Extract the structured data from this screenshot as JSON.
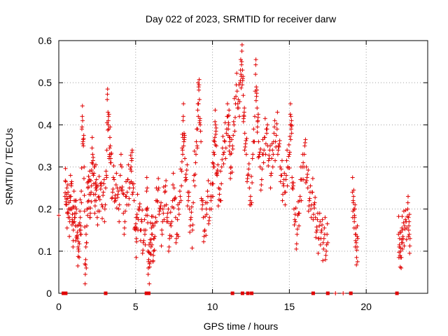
{
  "chart_data": {
    "type": "scatter",
    "title": "Day 022 of 2023, SRMTID for receiver darw",
    "xlabel": "GPS time / hours",
    "ylabel": "SRMTID / TECUs",
    "xlim": [
      0,
      24
    ],
    "ylim": [
      0,
      0.6
    ],
    "xticks": [
      "0",
      "5",
      "10",
      "15",
      "20"
    ],
    "yticks": [
      "0",
      "0.1",
      "0.2",
      "0.3",
      "0.4",
      "0.5",
      "0.6"
    ],
    "xtick_values": [
      0,
      5,
      10,
      15,
      20
    ],
    "ytick_values": [
      0,
      0.1,
      0.2,
      0.3,
      0.4,
      0.5,
      0.6
    ],
    "grid": true,
    "marker": "+",
    "color": "#e00000",
    "series": [
      {
        "name": "SRMTID",
        "points": [
          [
            0.0,
            0.185
          ],
          [
            0.4,
            0.23
          ],
          [
            0.45,
            0.265
          ],
          [
            0.5,
            0.21
          ],
          [
            0.55,
            0.19
          ],
          [
            0.6,
            0.24
          ],
          [
            0.65,
            0.2
          ],
          [
            0.7,
            0.18
          ],
          [
            0.75,
            0.22
          ],
          [
            0.8,
            0.26
          ],
          [
            0.85,
            0.2
          ],
          [
            0.9,
            0.17
          ],
          [
            0.95,
            0.15
          ],
          [
            1.0,
            0.22
          ],
          [
            1.05,
            0.18
          ],
          [
            1.1,
            0.16
          ],
          [
            1.15,
            0.2
          ],
          [
            1.2,
            0.13
          ],
          [
            1.25,
            0.11
          ],
          [
            1.3,
            0.1
          ],
          [
            1.35,
            0.15
          ],
          [
            1.4,
            0.18
          ],
          [
            1.45,
            0.14
          ],
          [
            1.5,
            0.39
          ],
          [
            1.55,
            0.41
          ],
          [
            1.6,
            0.35
          ],
          [
            1.65,
            0.3
          ],
          [
            1.7,
            0.07
          ],
          [
            1.75,
            0.08
          ],
          [
            1.8,
            0.12
          ],
          [
            1.85,
            0.2
          ],
          [
            1.9,
            0.25
          ],
          [
            1.95,
            0.22
          ],
          [
            2.0,
            0.27
          ],
          [
            2.05,
            0.19
          ],
          [
            2.1,
            0.24
          ],
          [
            2.15,
            0.31
          ],
          [
            2.2,
            0.33
          ],
          [
            2.25,
            0.28
          ],
          [
            2.3,
            0.3
          ],
          [
            2.35,
            0.22
          ],
          [
            2.4,
            0.25
          ],
          [
            2.45,
            0.27
          ],
          [
            2.5,
            0.18
          ],
          [
            2.6,
            0.23
          ],
          [
            2.7,
            0.26
          ],
          [
            2.8,
            0.21
          ],
          [
            2.9,
            0.24
          ],
          [
            3.0,
            0.2
          ],
          [
            3.1,
            0.28
          ],
          [
            3.15,
            0.46
          ],
          [
            3.2,
            0.43
          ],
          [
            3.25,
            0.39
          ],
          [
            3.3,
            0.33
          ],
          [
            3.35,
            0.35
          ],
          [
            3.4,
            0.31
          ],
          [
            3.5,
            0.24
          ],
          [
            3.6,
            0.27
          ],
          [
            3.7,
            0.22
          ],
          [
            3.8,
            0.25
          ],
          [
            3.9,
            0.2
          ],
          [
            4.0,
            0.28
          ],
          [
            4.1,
            0.3
          ],
          [
            4.2,
            0.19
          ],
          [
            4.3,
            0.17
          ],
          [
            4.4,
            0.23
          ],
          [
            4.5,
            0.27
          ],
          [
            4.6,
            0.25
          ],
          [
            4.7,
            0.3
          ],
          [
            4.75,
            0.32
          ],
          [
            4.8,
            0.26
          ],
          [
            4.9,
            0.22
          ],
          [
            5.0,
            0.15
          ],
          [
            5.05,
            0.13
          ],
          [
            5.1,
            0.18
          ],
          [
            5.2,
            0.2
          ],
          [
            5.3,
            0.15
          ],
          [
            5.4,
            0.17
          ],
          [
            5.5,
            0.12
          ],
          [
            5.6,
            0.14
          ],
          [
            5.7,
            0.2
          ],
          [
            5.75,
            0.25
          ],
          [
            5.8,
            0.1
          ],
          [
            5.85,
            0.08
          ],
          [
            5.9,
            0.07
          ],
          [
            5.95,
            0.12
          ],
          [
            6.0,
            0.11
          ],
          [
            6.05,
            0.14
          ],
          [
            6.1,
            0.16
          ],
          [
            6.15,
            0.09
          ],
          [
            6.2,
            0.13
          ],
          [
            6.3,
            0.18
          ],
          [
            6.4,
            0.22
          ],
          [
            6.5,
            0.25
          ],
          [
            6.6,
            0.2
          ],
          [
            6.7,
            0.15
          ],
          [
            6.8,
            0.19
          ],
          [
            6.9,
            0.24
          ],
          [
            7.0,
            0.21
          ],
          [
            7.1,
            0.17
          ],
          [
            7.2,
            0.13
          ],
          [
            7.3,
            0.16
          ],
          [
            7.4,
            0.22
          ],
          [
            7.5,
            0.25
          ],
          [
            7.6,
            0.18
          ],
          [
            7.7,
            0.14
          ],
          [
            7.8,
            0.2
          ],
          [
            7.9,
            0.23
          ],
          [
            8.0,
            0.29
          ],
          [
            8.05,
            0.34
          ],
          [
            8.1,
            0.42
          ],
          [
            8.15,
            0.38
          ],
          [
            8.2,
            0.32
          ],
          [
            8.3,
            0.27
          ],
          [
            8.4,
            0.24
          ],
          [
            8.5,
            0.2
          ],
          [
            8.6,
            0.18
          ],
          [
            8.7,
            0.15
          ],
          [
            8.8,
            0.28
          ],
          [
            8.9,
            0.31
          ],
          [
            9.0,
            0.35
          ],
          [
            9.05,
            0.45
          ],
          [
            9.1,
            0.49
          ],
          [
            9.15,
            0.46
          ],
          [
            9.2,
            0.4
          ],
          [
            9.3,
            0.22
          ],
          [
            9.4,
            0.18
          ],
          [
            9.5,
            0.15
          ],
          [
            9.6,
            0.2
          ],
          [
            9.7,
            0.23
          ],
          [
            9.8,
            0.18
          ],
          [
            9.9,
            0.22
          ],
          [
            10.0,
            0.26
          ],
          [
            10.05,
            0.3
          ],
          [
            10.1,
            0.33
          ],
          [
            10.15,
            0.37
          ],
          [
            10.2,
            0.4
          ],
          [
            10.25,
            0.35
          ],
          [
            10.3,
            0.28
          ],
          [
            10.4,
            0.25
          ],
          [
            10.5,
            0.22
          ],
          [
            10.6,
            0.3
          ],
          [
            10.7,
            0.33
          ],
          [
            10.8,
            0.36
          ],
          [
            10.9,
            0.38
          ],
          [
            11.0,
            0.42
          ],
          [
            11.05,
            0.4
          ],
          [
            11.1,
            0.37
          ],
          [
            11.15,
            0.33
          ],
          [
            11.2,
            0.3
          ],
          [
            11.3,
            0.35
          ],
          [
            11.4,
            0.4
          ],
          [
            11.5,
            0.45
          ],
          [
            11.6,
            0.48
          ],
          [
            11.7,
            0.44
          ],
          [
            11.8,
            0.5
          ],
          [
            11.85,
            0.52
          ],
          [
            11.9,
            0.55
          ],
          [
            11.95,
            0.53
          ],
          [
            12.0,
            0.47
          ],
          [
            12.05,
            0.42
          ],
          [
            12.1,
            0.38
          ],
          [
            12.2,
            0.33
          ],
          [
            12.3,
            0.28
          ],
          [
            12.4,
            0.25
          ],
          [
            12.5,
            0.21
          ],
          [
            12.6,
            0.32
          ],
          [
            12.7,
            0.36
          ],
          [
            12.8,
            0.52
          ],
          [
            12.85,
            0.49
          ],
          [
            12.9,
            0.44
          ],
          [
            12.95,
            0.41
          ],
          [
            13.0,
            0.36
          ],
          [
            13.1,
            0.3
          ],
          [
            13.2,
            0.27
          ],
          [
            13.3,
            0.33
          ],
          [
            13.4,
            0.37
          ],
          [
            13.5,
            0.39
          ],
          [
            13.6,
            0.35
          ],
          [
            13.7,
            0.32
          ],
          [
            13.8,
            0.28
          ],
          [
            13.9,
            0.34
          ],
          [
            14.0,
            0.38
          ],
          [
            14.1,
            0.36
          ],
          [
            14.2,
            0.39
          ],
          [
            14.3,
            0.35
          ],
          [
            14.4,
            0.3
          ],
          [
            14.5,
            0.28
          ],
          [
            14.6,
            0.26
          ],
          [
            14.7,
            0.24
          ],
          [
            14.8,
            0.28
          ],
          [
            14.9,
            0.3
          ],
          [
            15.0,
            0.33
          ],
          [
            15.05,
            0.4
          ],
          [
            15.1,
            0.42
          ],
          [
            15.15,
            0.38
          ],
          [
            15.2,
            0.25
          ],
          [
            15.3,
            0.2
          ],
          [
            15.4,
            0.17
          ],
          [
            15.5,
            0.14
          ],
          [
            15.6,
            0.19
          ],
          [
            15.7,
            0.23
          ],
          [
            15.8,
            0.27
          ],
          [
            15.9,
            0.31
          ],
          [
            16.0,
            0.35
          ],
          [
            16.1,
            0.3
          ],
          [
            16.2,
            0.25
          ],
          [
            16.3,
            0.22
          ],
          [
            16.4,
            0.2
          ],
          [
            16.5,
            0.24
          ],
          [
            16.6,
            0.21
          ],
          [
            16.7,
            0.18
          ],
          [
            16.8,
            0.15
          ],
          [
            16.9,
            0.13
          ],
          [
            17.0,
            0.17
          ],
          [
            17.1,
            0.15
          ],
          [
            17.2,
            0.12
          ],
          [
            17.3,
            0.14
          ],
          [
            17.4,
            0.1
          ],
          [
            17.5,
            0.12
          ],
          [
            19.1,
            0.24
          ],
          [
            19.15,
            0.22
          ],
          [
            19.2,
            0.2
          ],
          [
            19.25,
            0.18
          ],
          [
            19.3,
            0.14
          ],
          [
            19.35,
            0.12
          ],
          [
            19.4,
            0.11
          ],
          [
            19.45,
            0.13
          ],
          [
            22.1,
            0.14
          ],
          [
            22.15,
            0.11
          ],
          [
            22.2,
            0.09
          ],
          [
            22.25,
            0.1
          ],
          [
            22.3,
            0.12
          ],
          [
            22.35,
            0.15
          ],
          [
            22.4,
            0.13
          ],
          [
            22.5,
            0.16
          ],
          [
            22.6,
            0.17
          ],
          [
            22.7,
            0.2
          ],
          [
            22.75,
            0.18
          ],
          [
            22.8,
            0.14
          ],
          [
            22.85,
            0.13
          ]
        ]
      }
    ],
    "zero_markers": [
      0.3,
      0.45,
      3.05,
      5.7,
      5.85,
      11.3,
      11.95,
      12.3,
      12.55,
      16.55,
      17.5,
      19.0,
      22.0
    ],
    "zero_plus": [
      18.0,
      18.5
    ]
  }
}
